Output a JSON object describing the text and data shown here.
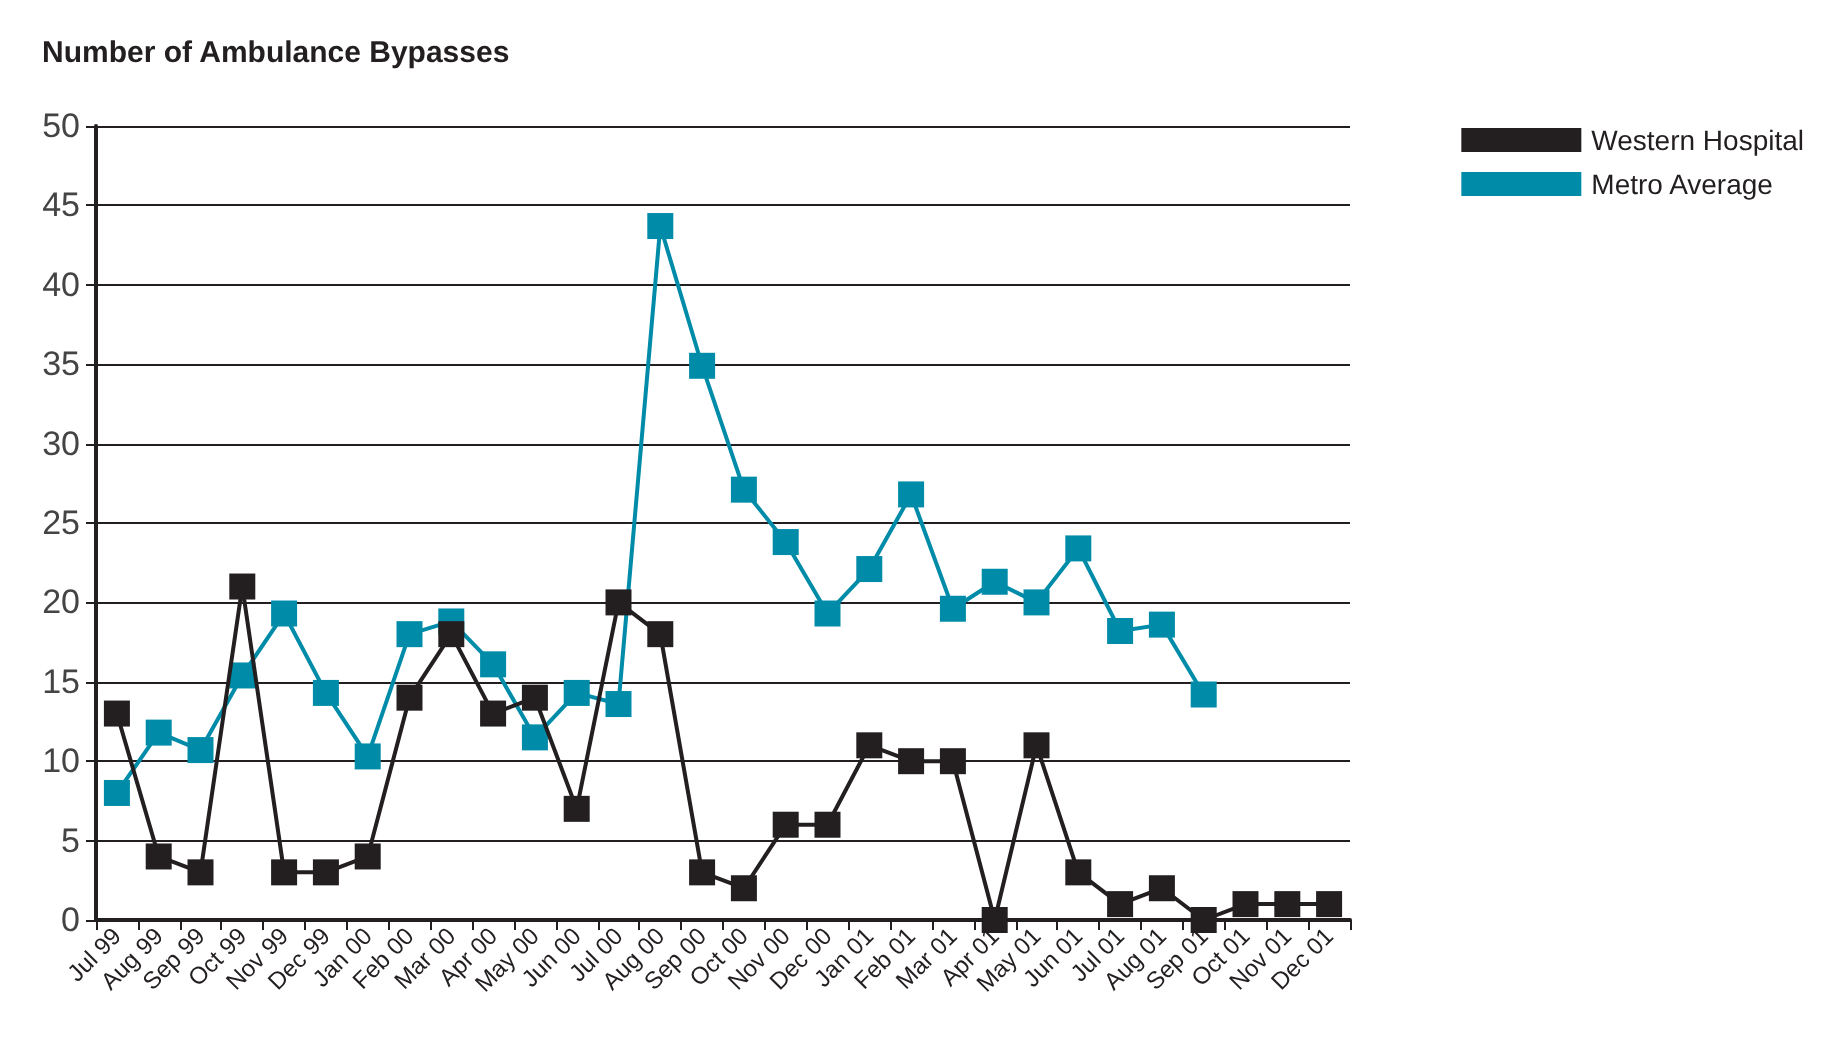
{
  "chart_data": {
    "type": "line",
    "title": "Number of Ambulance Bypasses",
    "categories": [
      "Jul 99",
      "Aug 99",
      "Sep 99",
      "Oct 99",
      "Nov 99",
      "Dec 99",
      "Jan 00",
      "Feb 00",
      "Mar 00",
      "Apr 00",
      "May 00",
      "Jun 00",
      "Jul 00",
      "Aug 00",
      "Sep 00",
      "Oct 00",
      "Nov 00",
      "Dec 00",
      "Jan 01",
      "Feb 01",
      "Mar 01",
      "Apr 01",
      "May 01",
      "Jun 01",
      "Jul 01",
      "Aug 01",
      "Sep 01",
      "Oct 01",
      "Nov 01",
      "Dec 01"
    ],
    "series": [
      {
        "name": "Western Hospital",
        "color": "#231f20",
        "values": [
          13,
          4,
          3,
          21,
          3,
          3,
          4,
          14,
          18,
          13,
          14,
          7,
          20,
          18,
          3,
          2,
          6,
          6,
          11,
          10,
          10,
          0,
          11,
          3,
          1,
          2,
          0,
          1,
          1,
          1
        ]
      },
      {
        "name": "Metro Average",
        "color": "#008ca8",
        "values": [
          8,
          11.8,
          10.7,
          15.4,
          19.3,
          14.3,
          10.3,
          18,
          18.8,
          16.1,
          11.5,
          14.3,
          13.6,
          43.7,
          34.9,
          27.1,
          23.8,
          19.3,
          22.1,
          26.8,
          19.6,
          21.3,
          20,
          23.4,
          18.2,
          18.6,
          14.2,
          null,
          null,
          null
        ]
      }
    ],
    "ylim": [
      0,
      50
    ],
    "yticks": [
      0,
      5,
      10,
      15,
      20,
      25,
      30,
      35,
      40,
      45,
      50
    ],
    "grid": "y",
    "legend": "top right",
    "marker": "square",
    "line_style": "solid"
  }
}
